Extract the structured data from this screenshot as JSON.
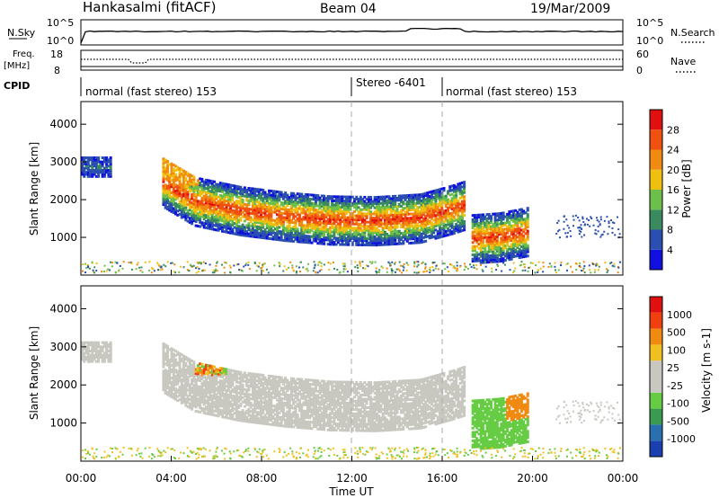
{
  "header": {
    "title": "Hankasalmi (fitACF)",
    "beam": "Beam 04",
    "date": "19/Mar/2009"
  },
  "status_panels": {
    "nsky_label": "N.Sky",
    "nsky_ticks": [
      "10^5",
      "10^0"
    ],
    "nsearch_label": "N.Search",
    "freq_label": "Freq.",
    "freq_unit": "[MHz]",
    "freq_ticks": [
      "18",
      "8"
    ],
    "nave_label": "Nave",
    "nave_ticks": [
      "60",
      "0"
    ],
    "cpid_label": "CPID",
    "cpid_segments": [
      {
        "label": "normal (fast stereo) 153",
        "start": 0,
        "end": 12
      },
      {
        "label": "Stereo -6401",
        "start": 12,
        "end": 16
      },
      {
        "label": "normal (fast stereo) 153",
        "start": 16,
        "end": 24
      }
    ]
  },
  "chart_data": [
    {
      "type": "heatmap",
      "ylabel": "Slant Range [km]",
      "ylim": [
        0,
        4600
      ],
      "yticks": [
        "1000",
        "2000",
        "3000",
        "4000"
      ],
      "colorbar_label": "Power [dB]",
      "colorbar_ticks": [
        "4",
        "8",
        "12",
        "16",
        "20",
        "24",
        "28"
      ],
      "colorbar_colors": [
        "#1010e0",
        "#2a4fb0",
        "#3a8a60",
        "#6cc04a",
        "#f0c010",
        "#f08a10",
        "#f05010",
        "#e01010"
      ],
      "bands": [
        {
          "name": "main-arc",
          "start_h": 3.6,
          "end_h": 17.0,
          "range_km": [
            [
              3.6,
              2500
            ],
            [
              5.0,
              2000
            ],
            [
              7.0,
              1750
            ],
            [
              9.0,
              1600
            ],
            [
              11.0,
              1500
            ],
            [
              13.0,
              1480
            ],
            [
              15.0,
              1550
            ],
            [
              16.5,
              1800
            ],
            [
              17.0,
              1900
            ]
          ],
          "peak_db": 28
        },
        {
          "name": "late-echo",
          "start_h": 17.3,
          "end_h": 19.8,
          "range_km": [
            [
              17.3,
              1000
            ],
            [
              18.5,
              1050
            ],
            [
              19.8,
              1200
            ]
          ],
          "peak_db": 28
        },
        {
          "name": "early-patch",
          "start_h": 0.0,
          "end_h": 1.3,
          "range_km": [
            [
              0.0,
              2900
            ],
            [
              1.3,
              2900
            ]
          ],
          "peak_db": 8
        }
      ]
    },
    {
      "type": "heatmap",
      "ylabel": "Slant Range [km]",
      "ylim": [
        0,
        4600
      ],
      "yticks": [
        "1000",
        "2000",
        "3000",
        "4000"
      ],
      "colorbar_label": "Velocity [m s-1]",
      "colorbar_ticks": [
        "1000",
        "500",
        "100",
        "25",
        "-25",
        "-100",
        "-500",
        "-1000"
      ],
      "colorbar_colors": [
        "#1a3fb0",
        "#2a6fb0",
        "#3a9a50",
        "#66cc44",
        "#c8c8c0",
        "#c8c8c0",
        "#f0c020",
        "#f08a10",
        "#f04010",
        "#e01010"
      ],
      "xlabel": "Time UT",
      "xticks": [
        "00:00",
        "04:00",
        "08:00",
        "12:00",
        "16:00",
        "20:00",
        "00:00"
      ],
      "xlim": [
        0,
        24
      ]
    }
  ]
}
